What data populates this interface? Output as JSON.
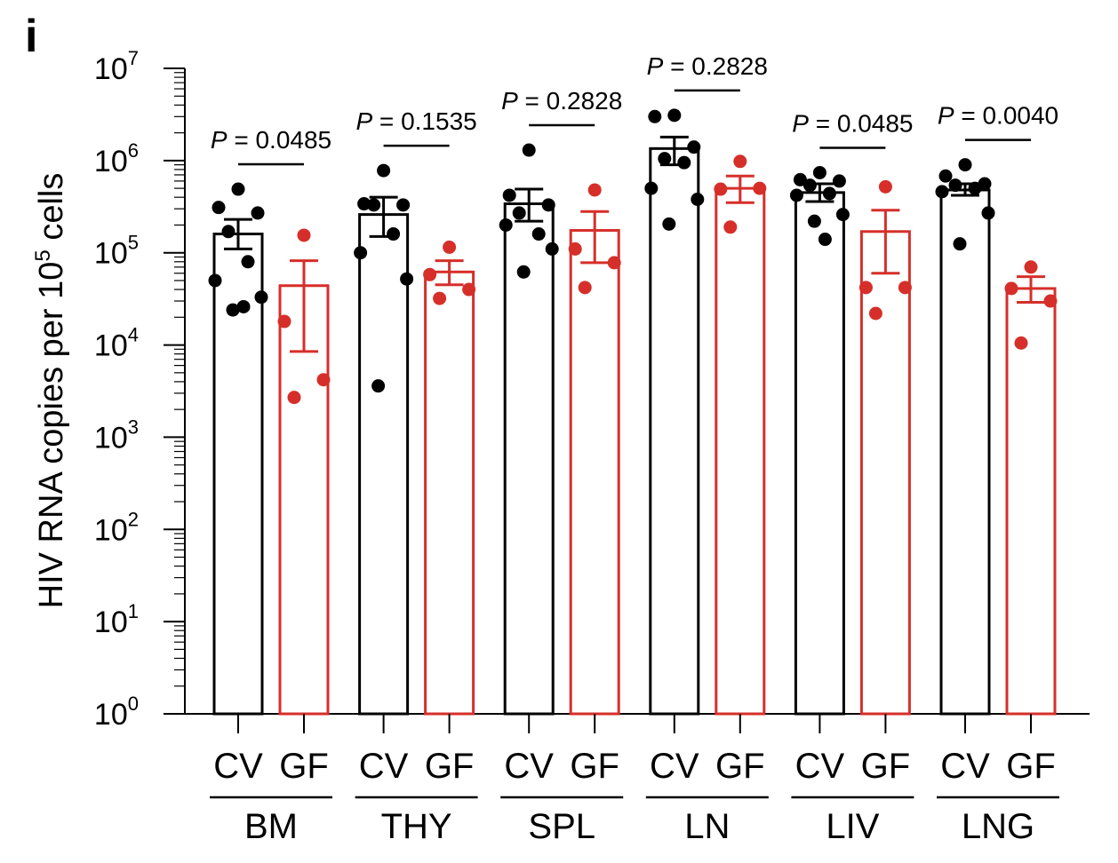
{
  "panel_label": "i",
  "chart_data": {
    "type": "bar",
    "title": "",
    "ylabel": "HIV RNA copies per 10",
    "ylabel_superscript": "5",
    "ylabel_suffix": " cells",
    "yscale": "log",
    "ylim": [
      1,
      10000000
    ],
    "yticks": [
      {
        "base": "10",
        "exp": "0"
      },
      {
        "base": "10",
        "exp": "1"
      },
      {
        "base": "10",
        "exp": "2"
      },
      {
        "base": "10",
        "exp": "3"
      },
      {
        "base": "10",
        "exp": "4"
      },
      {
        "base": "10",
        "exp": "5"
      },
      {
        "base": "10",
        "exp": "6"
      },
      {
        "base": "10",
        "exp": "7"
      }
    ],
    "series_colors": {
      "CV": "#000000",
      "GF": "#d62f2a"
    },
    "groups": [
      {
        "name": "BM",
        "p": "0.0485",
        "bars": [
          {
            "label": "CV",
            "mean": 160000,
            "err": [
              110000,
              230000
            ],
            "points": [
              490000,
              310000,
              270000,
              170000,
              80000,
              50000,
              33000,
              24000,
              26000
            ]
          },
          {
            "label": "GF",
            "mean": 44000,
            "err": [
              8500,
              82000
            ],
            "points": [
              155000,
              18000,
              4200,
              2700
            ]
          }
        ]
      },
      {
        "name": "THY",
        "p": "0.1535",
        "bars": [
          {
            "label": "CV",
            "mean": 260000,
            "err": [
              150000,
              400000
            ],
            "points": [
              780000,
              340000,
              330000,
              330000,
              160000,
              100000,
              52000,
              3600
            ]
          },
          {
            "label": "GF",
            "mean": 62000,
            "err": [
              45000,
              82000
            ],
            "points": [
              115000,
              58000,
              40000,
              32000
            ]
          }
        ]
      },
      {
        "name": "SPL",
        "p": "0.2828",
        "bars": [
          {
            "label": "CV",
            "mean": 340000,
            "err": [
              220000,
              490000
            ],
            "points": [
              1300000,
              420000,
              330000,
              270000,
              160000,
              200000,
              110000,
              62000
            ]
          },
          {
            "label": "GF",
            "mean": 175000,
            "err": [
              78000,
              280000
            ],
            "points": [
              480000,
              110000,
              78000,
              42000
            ]
          }
        ]
      },
      {
        "name": "LN",
        "p": "0.2828",
        "bars": [
          {
            "label": "CV",
            "mean": 1350000,
            "err": [
              900000,
              1800000
            ],
            "points": [
              3100000,
              3000000,
              1400000,
              1050000,
              950000,
              500000,
              380000,
              205000
            ]
          },
          {
            "label": "GF",
            "mean": 500000,
            "err": [
              350000,
              680000
            ],
            "points": [
              980000,
              490000,
              500000,
              190000
            ]
          }
        ]
      },
      {
        "name": "LIV",
        "p": "0.0485",
        "bars": [
          {
            "label": "CV",
            "mean": 450000,
            "err": [
              360000,
              560000
            ],
            "points": [
              740000,
              620000,
              600000,
              540000,
              440000,
              420000,
              260000,
              220000,
              140000
            ]
          },
          {
            "label": "GF",
            "mean": 170000,
            "err": [
              60000,
              290000
            ],
            "points": [
              520000,
              42000,
              42000,
              22000
            ]
          }
        ]
      },
      {
        "name": "LNG",
        "p": "0.0040",
        "bars": [
          {
            "label": "CV",
            "mean": 480000,
            "err": [
              420000,
              560000
            ],
            "points": [
              900000,
              680000,
              560000,
              540000,
              500000,
              460000,
              270000,
              125000
            ]
          },
          {
            "label": "GF",
            "mean": 41000,
            "err": [
              29000,
              55000
            ],
            "points": [
              70000,
              41000,
              30000,
              10500
            ]
          }
        ]
      }
    ]
  }
}
